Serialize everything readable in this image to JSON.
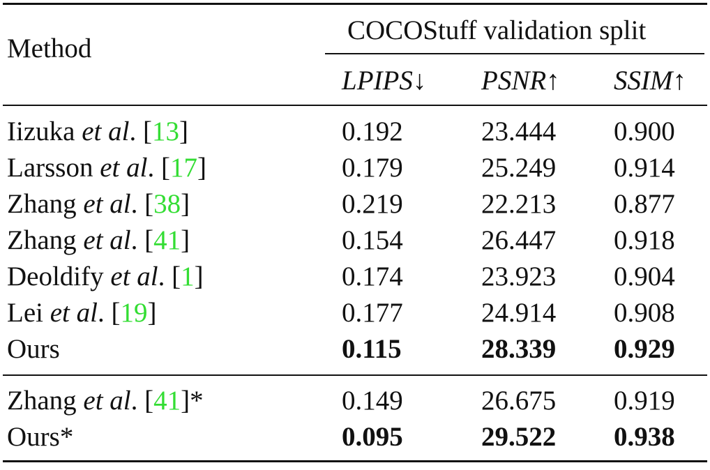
{
  "table": {
    "method_header": "Method",
    "group_header": "COCOStuff validation split",
    "columns": [
      {
        "name": "LPIPS",
        "arrow": "↓"
      },
      {
        "name": "PSNR",
        "arrow": "↑"
      },
      {
        "name": "SSIM",
        "arrow": "↑"
      }
    ],
    "rows": [
      {
        "method": "Iizuka",
        "etal": "et al",
        "suffix": ". [",
        "cite": "13",
        "close": "]",
        "lpips": "0.192",
        "psnr": "23.444",
        "ssim": "0.900",
        "bold": false
      },
      {
        "method": "Larsson",
        "etal": "et al",
        "suffix": ". [",
        "cite": "17",
        "close": "]",
        "lpips": "0.179",
        "psnr": "25.249",
        "ssim": "0.914",
        "bold": false
      },
      {
        "method": "Zhang",
        "etal": "et al",
        "suffix": ". [",
        "cite": "38",
        "close": "]",
        "lpips": "0.219",
        "psnr": "22.213",
        "ssim": "0.877",
        "bold": false
      },
      {
        "method": "Zhang",
        "etal": "et al",
        "suffix": ". [",
        "cite": "41",
        "close": "]",
        "lpips": "0.154",
        "psnr": "26.447",
        "ssim": "0.918",
        "bold": false
      },
      {
        "method": "Deoldify",
        "etal": "et al",
        "suffix": ". [",
        "cite": "1",
        "close": "]",
        "lpips": "0.174",
        "psnr": "23.923",
        "ssim": "0.904",
        "bold": false
      },
      {
        "method": "Lei",
        "etal": "et al",
        "suffix": ". [",
        "cite": "19",
        "close": "]",
        "lpips": "0.177",
        "psnr": "24.914",
        "ssim": "0.908",
        "bold": false
      },
      {
        "method": "Ours",
        "etal": "",
        "suffix": "",
        "cite": "",
        "close": "",
        "lpips": "0.115",
        "psnr": "28.339",
        "ssim": "0.929",
        "bold": true
      }
    ],
    "rows_star": [
      {
        "method": "Zhang",
        "etal": "et al",
        "suffix": ". [",
        "cite": "41",
        "close": "]*",
        "lpips": "0.149",
        "psnr": "26.675",
        "ssim": "0.919",
        "bold": false
      },
      {
        "method": "Ours*",
        "etal": "",
        "suffix": "",
        "cite": "",
        "close": "",
        "lpips": "0.095",
        "psnr": "29.522",
        "ssim": "0.938",
        "bold": true
      }
    ],
    "colors": {
      "citation": "#33dd33",
      "text": "#111111"
    }
  }
}
